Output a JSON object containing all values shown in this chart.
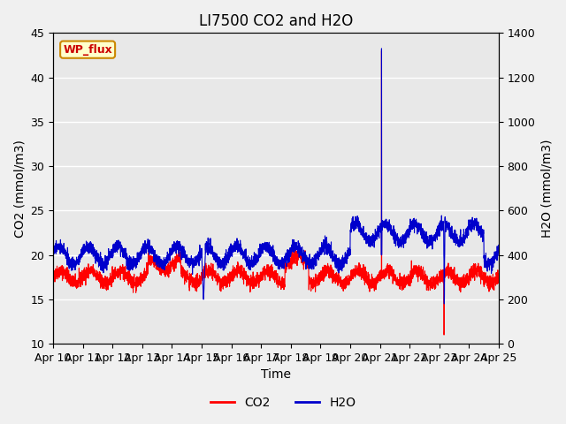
{
  "title": "LI7500 CO2 and H2O",
  "xlabel": "Time",
  "ylabel_left": "CO2 (mmol/m3)",
  "ylabel_right": "H2O (mmol/m3)",
  "xlim_days": [
    0,
    15
  ],
  "ylim_left": [
    10,
    45
  ],
  "ylim_right": [
    0,
    1400
  ],
  "x_tick_labels": [
    "Apr 10",
    "Apr 11",
    "Apr 12",
    "Apr 13",
    "Apr 14",
    "Apr 15",
    "Apr 16",
    "Apr 17",
    "Apr 18",
    "Apr 19",
    "Apr 20",
    "Apr 21",
    "Apr 22",
    "Apr 23",
    "Apr 24",
    "Apr 25"
  ],
  "fig_bg_color": "#f0f0f0",
  "plot_bg_color": "#e8e8e8",
  "co2_color": "#ff0000",
  "h2o_color": "#0000cc",
  "legend_entries": [
    "CO2",
    "H2O"
  ],
  "annotation_text": "WP_flux",
  "annotation_bg": "#ffffcc",
  "annotation_border": "#cc8800",
  "title_fontsize": 12,
  "label_fontsize": 10,
  "tick_fontsize": 9,
  "yticks_left": [
    10,
    15,
    20,
    25,
    30,
    35,
    40,
    45
  ],
  "yticks_right": [
    0,
    200,
    400,
    600,
    800,
    1000,
    1200,
    1400
  ],
  "co2_base": 17.5,
  "h2o_base": 400,
  "co2_amplitude": 0.7,
  "h2o_amplitude": 40,
  "co2_noise_std": 0.4,
  "h2o_noise_std": 15,
  "spike_up_day": 11.05,
  "spike_down_day": 13.15,
  "h2o_drop_day": 5.0
}
